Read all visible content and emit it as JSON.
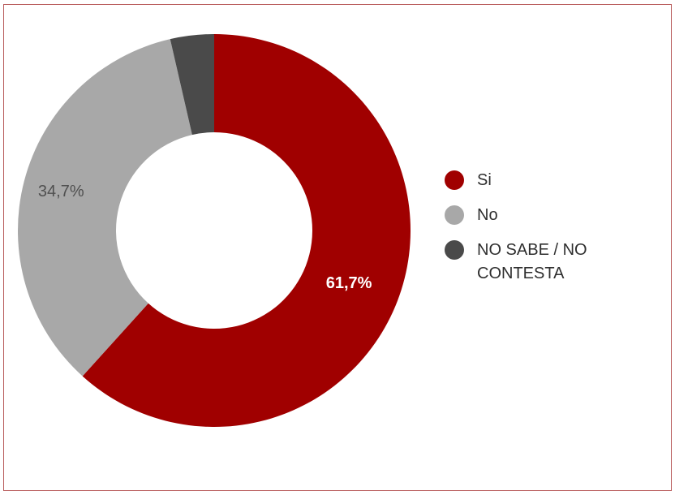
{
  "chart_data": {
    "type": "pie",
    "donut": true,
    "categories": [
      "Si",
      "No",
      "NO SABE / NO CONTESTA"
    ],
    "values": [
      61.7,
      34.7,
      3.6
    ],
    "data_labels": [
      "61,7%",
      "34,7%",
      ""
    ],
    "colors": [
      "#a00000",
      "#a8a8a8",
      "#4a4a4a"
    ],
    "legend_position": "right"
  }
}
